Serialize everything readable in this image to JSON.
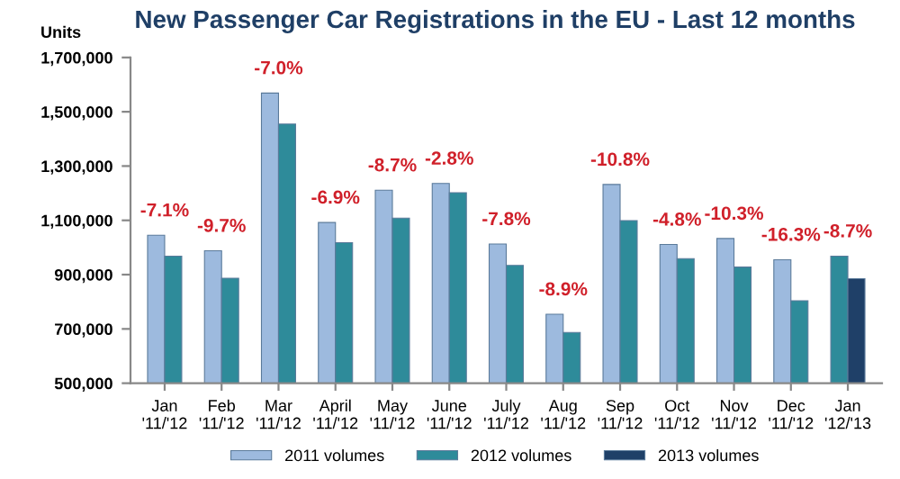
{
  "chart_data": {
    "type": "bar",
    "title": "New Passenger Car Registrations in the EU - Last 12 months",
    "ylabel": "Units",
    "categories": [
      "Jan\n'11/'12",
      "Feb\n'11/'12",
      "Mar\n'11/'12",
      "April\n'11/'12",
      "May\n'11/'12",
      "June\n'11/'12",
      "July\n'11/'12",
      "Aug\n'11/'12",
      "Sep\n'11/'12",
      "Oct\n'11/'12",
      "Nov\n'11/'12",
      "Dec\n'11/'12",
      "Jan\n'12/'13"
    ],
    "series": [
      {
        "name": "2011 volumes",
        "color": "#9dbade",
        "values": [
          1045000,
          988000,
          1569000,
          1092000,
          1211000,
          1236000,
          1013000,
          754000,
          1232000,
          1011000,
          1033000,
          955000,
          null
        ]
      },
      {
        "name": "2012 volumes",
        "color": "#2e8b9a",
        "values": [
          968000,
          887000,
          1455000,
          1018000,
          1108000,
          1202000,
          934000,
          687000,
          1099000,
          959000,
          928000,
          804000,
          968000
        ]
      },
      {
        "name": "2013 volumes",
        "color": "#1f4068",
        "values": [
          null,
          null,
          null,
          null,
          null,
          null,
          null,
          null,
          null,
          null,
          null,
          null,
          885000
        ]
      }
    ],
    "ylim": [
      500000,
      1700000
    ],
    "yticks": [
      {
        "value": 500000,
        "label": "500,000"
      },
      {
        "value": 700000,
        "label": "700,000"
      },
      {
        "value": 900000,
        "label": "900,000"
      },
      {
        "value": 1100000,
        "label": "1,100,000"
      },
      {
        "value": 1300000,
        "label": "1,300,000"
      },
      {
        "value": 1500000,
        "label": "1,500,000"
      },
      {
        "value": 1700000,
        "label": "1,700,000"
      }
    ],
    "grid": false,
    "legend": "bottom",
    "annotations": [
      {
        "text": "-7.1%",
        "x": "Jan\n'11/'12",
        "y": 1045000
      },
      {
        "text": "-9.7%",
        "x": "Feb\n'11/'12",
        "y": 988000
      },
      {
        "text": "-7.0%",
        "x": "Mar\n'11/'12",
        "y": 1569000
      },
      {
        "text": "-6.9%",
        "x": "April\n'11/'12",
        "y": 1092000
      },
      {
        "text": "-8.7%",
        "x": "May\n'11/'12",
        "y": 1211000
      },
      {
        "text": "-2.8%",
        "x": "June\n'11/'12",
        "y": 1236000
      },
      {
        "text": "-7.8%",
        "x": "July\n'11/'12",
        "y": 1013000
      },
      {
        "text": "-8.9%",
        "x": "Aug\n'11/'12",
        "y": 754000
      },
      {
        "text": "-10.8%",
        "x": "Sep\n'11/'12",
        "y": 1232000
      },
      {
        "text": "-4.8%",
        "x": "Oct\n'11/'12",
        "y": 1011000
      },
      {
        "text": "-10.3%",
        "x": "Nov\n'11/'12",
        "y": 1033000
      },
      {
        "text": "-16.3%",
        "x": "Dec\n'11/'12",
        "y": 955000
      },
      {
        "text": "-8.7%",
        "x": "Jan\n'12/'13",
        "y": 968000
      }
    ]
  }
}
